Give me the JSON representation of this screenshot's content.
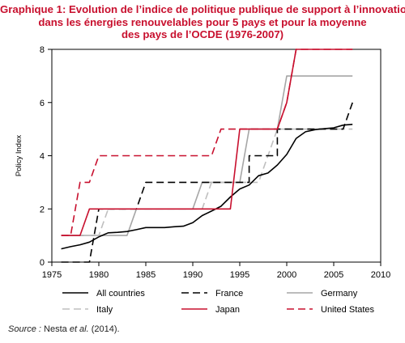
{
  "title_lines": [
    "Graphique 1: Evolution de l’indice de politique publique de support à l’innovation",
    "dans les énergies renouvelables pour 5 pays et pour la moyenne",
    "des pays de l’OCDE (1976-2007)"
  ],
  "source": {
    "prefix": "Source :",
    "text_a": " Nesta ",
    "text_it": "et al.",
    "text_b": " (2014)."
  },
  "chart_data": {
    "type": "line",
    "ylabel": "Policy Index",
    "xlim": [
      1975,
      2010
    ],
    "ylim": [
      0,
      8
    ],
    "xticks": [
      1975,
      1980,
      1985,
      1990,
      1995,
      2000,
      2005,
      2010
    ],
    "yticks": [
      0,
      2,
      4,
      6,
      8
    ],
    "legend_position": "bottom",
    "series": [
      {
        "name": "All countries",
        "color": "#000000",
        "dash": "solid",
        "x": [
          1976,
          1977,
          1978,
          1979,
          1980,
          1981,
          1982,
          1983,
          1984,
          1985,
          1986,
          1987,
          1988,
          1989,
          1990,
          1991,
          1992,
          1993,
          1994,
          1995,
          1996,
          1997,
          1998,
          1999,
          2000,
          2001,
          2002,
          2003,
          2004,
          2005,
          2006,
          2007
        ],
        "y": [
          0.5,
          0.58,
          0.65,
          0.75,
          0.95,
          1.1,
          1.12,
          1.15,
          1.22,
          1.3,
          1.3,
          1.3,
          1.33,
          1.35,
          1.48,
          1.75,
          1.92,
          2.1,
          2.45,
          2.75,
          2.9,
          3.25,
          3.35,
          3.65,
          4.05,
          4.65,
          4.9,
          4.98,
          5.02,
          5.05,
          5.15,
          5.18
        ]
      },
      {
        "name": "France",
        "color": "#000000",
        "dash": "long",
        "x": [
          1976,
          1979,
          1980,
          1984,
          1985,
          1992,
          1993,
          1996,
          1996,
          1999,
          1999,
          2006,
          2007
        ],
        "y": [
          0,
          0,
          2,
          2,
          3,
          3,
          3,
          3,
          4,
          4,
          5,
          5,
          6
        ]
      },
      {
        "name": "Germany",
        "color": "#a6a6a6",
        "dash": "solid",
        "x": [
          1976,
          1979,
          1980,
          1983,
          1984,
          1990,
          1991,
          1995,
          1996,
          1999,
          2000,
          2007
        ],
        "y": [
          1,
          1,
          1,
          1,
          2,
          2,
          3,
          3,
          5,
          5,
          7,
          7
        ]
      },
      {
        "name": "Italy",
        "color": "#bfbfbf",
        "dash": "long",
        "x": [
          1976,
          1980,
          1981,
          1991,
          1992,
          1996,
          1997,
          1998,
          1999,
          2001,
          2002,
          2007
        ],
        "y": [
          1,
          1,
          2,
          2,
          3,
          3,
          3,
          4,
          5,
          5,
          5,
          5
        ]
      },
      {
        "name": "Japan",
        "color": "#c8102e",
        "dash": "solid",
        "x": [
          1976,
          1978,
          1979,
          1991,
          1992,
          1994,
          1995,
          1998,
          1999,
          2000,
          2001,
          2007
        ],
        "y": [
          1,
          1,
          2,
          2,
          2,
          2,
          5,
          5,
          5,
          6,
          8,
          8
        ]
      },
      {
        "name": "United States",
        "color": "#c8102e",
        "dash": "long",
        "x": [
          1976,
          1977,
          1978,
          1979,
          1980,
          1992,
          1993,
          1999,
          2000,
          2001,
          2007
        ],
        "y": [
          1,
          1,
          3,
          3,
          4,
          4,
          5,
          5,
          6,
          8,
          8
        ]
      }
    ]
  }
}
